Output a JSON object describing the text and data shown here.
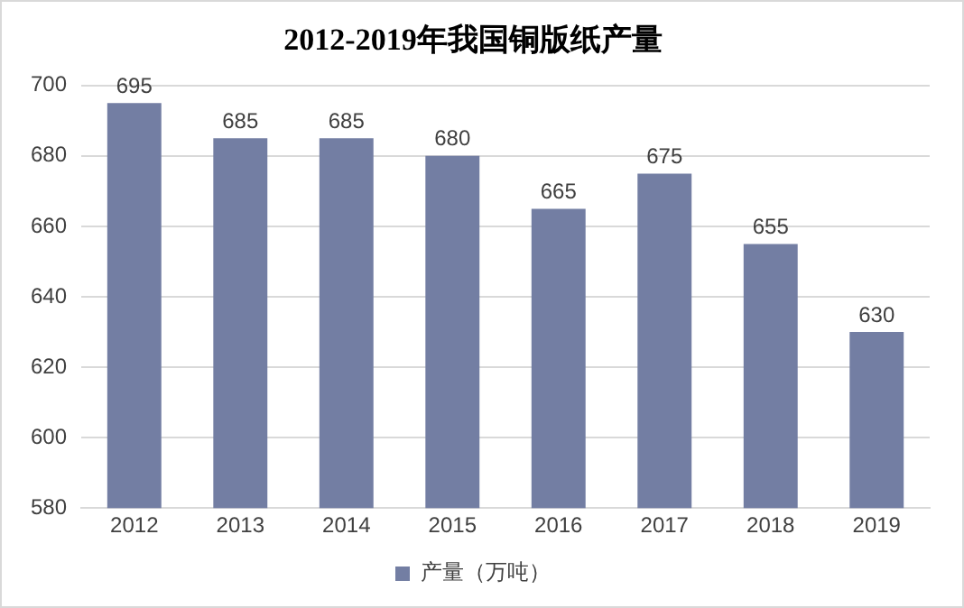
{
  "chart_data": {
    "type": "bar",
    "title": "2012-2019年我国铜版纸产量",
    "categories": [
      "2012",
      "2013",
      "2014",
      "2015",
      "2016",
      "2017",
      "2018",
      "2019"
    ],
    "series": [
      {
        "name": "产量（万吨）",
        "color": "#737ea3",
        "values": [
          695,
          685,
          685,
          680,
          665,
          675,
          655,
          630
        ]
      }
    ],
    "ylim": [
      580,
      700
    ],
    "yticks": [
      580,
      600,
      620,
      640,
      660,
      680,
      700
    ],
    "grid": "y",
    "legend": "bottom",
    "data_labels": true
  }
}
